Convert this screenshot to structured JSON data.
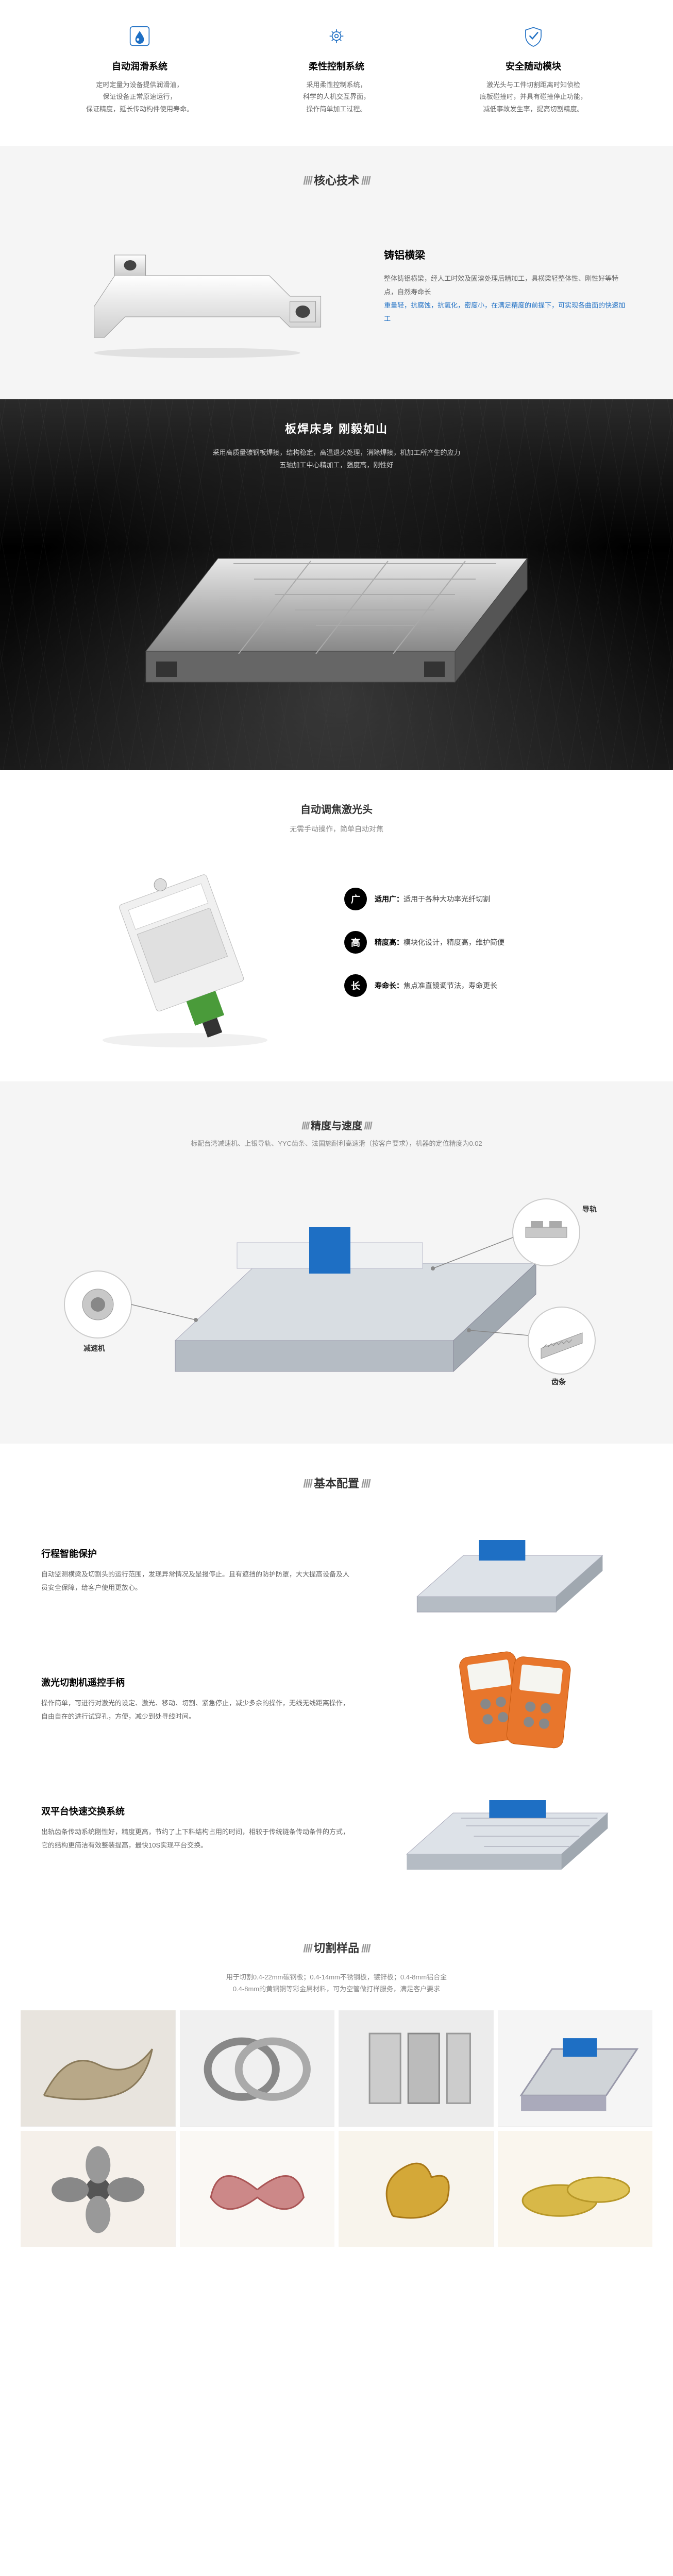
{
  "colors": {
    "accent": "#1e6fc4",
    "text": "#333333",
    "muted": "#666666",
    "light_bg": "#f5f5f5",
    "dark_bg": "#000000"
  },
  "top_features": [
    {
      "icon": "droplet",
      "title": "自动润滑系统",
      "desc": "定时定量为设备提供润滑油，\n保证设备正常原速运行，\n保证精度，延长传动构件使用寿命。"
    },
    {
      "icon": "gear",
      "title": "柔性控制系统",
      "desc": "采用柔性控制系统，\n科学的人机交互界面，\n操作简单加工过程。"
    },
    {
      "icon": "shield",
      "title": "安全随动模块",
      "desc": "激光头与工件切割距离时知侦检\n底板碰撞时，并具有碰撞停止功能，\n减低事故发生率，提高切割精度。"
    }
  ],
  "core_tech": {
    "header": "核心技术",
    "beam": {
      "title": "铸铝横梁",
      "desc_plain": "整体铸铝横梁，经人工时效及固溶处理后精加工，具横梁轻整体性、刚性好等特点，自然寿命长",
      "desc_highlight": "重量轻，抗腐蚀，抗氧化，密度小，在满足精度的前提下，可实现各曲面的快速加工"
    }
  },
  "bed": {
    "title": "板焊床身 刚毅如山",
    "desc": "采用高质量碳钢板焊接，结构稳定，高温退火处理，消除焊接，机加工所产生的应力\n五轴加工中心精加工，强度高，刚性好"
  },
  "laser_head": {
    "title": "自动调焦激光头",
    "subtitle": "无需手动操作，简单自动对焦",
    "specs": [
      {
        "badge": "广",
        "label": "适用广：",
        "text": "适用于各种大功率光纤切割"
      },
      {
        "badge": "高",
        "label": "精度高：",
        "text": "模块化设计，精度高，维护简便"
      },
      {
        "badge": "长",
        "label": "寿命长：",
        "text": "焦点准直镜调节法，寿命更长"
      }
    ]
  },
  "precision": {
    "title": "精度与速度",
    "subtitle": "标配台湾减速机、上银导轨、YYC齿条、法国施耐利高速滑（按客户要求），机器的定位精度为0.02",
    "labels": {
      "rail": "导轨",
      "reducer": "减速机",
      "rack": "齿条"
    }
  },
  "basic_config": {
    "header": "基本配置",
    "items": [
      {
        "title": "行程智能保护",
        "desc": "自动监测横梁及切割头的运行范围，发现异常情况及是报停止。且有遮挡的防护防罩，大大提高设备及人员安全保障，给客户使用更放心。"
      },
      {
        "title": "激光切割机遥控手柄",
        "desc": "操作简单，可进行对激光的设定、激光、移动、切割、紧急停止，减少多余的操作，无线无线距离操作，自由自在的进行试穿孔，方便，减少到处寻线时间。"
      },
      {
        "title": "双平台快速交换系统",
        "desc": "出轨齿条传动系统刚性好，精度更高，节约了上下料结构占用的时间，相较于传统链条传动条件的方式，它的结构更简洁有效整装提高，最快10S实现平台交换。"
      }
    ]
  },
  "samples": {
    "header": "切割样品",
    "subtitle": "用于切割0.4-22mm碳钢板；0.4-14mm不锈钢板，镀锌板；0.4-8mm铝合金\n0.4-8mm的黄铜铜等彩金属材料，可为空管做打样服务，满足客户要求",
    "cells": [
      "dragon",
      "rings",
      "panels",
      "machine",
      "flower",
      "butterfly",
      "rooster",
      "brass"
    ]
  }
}
